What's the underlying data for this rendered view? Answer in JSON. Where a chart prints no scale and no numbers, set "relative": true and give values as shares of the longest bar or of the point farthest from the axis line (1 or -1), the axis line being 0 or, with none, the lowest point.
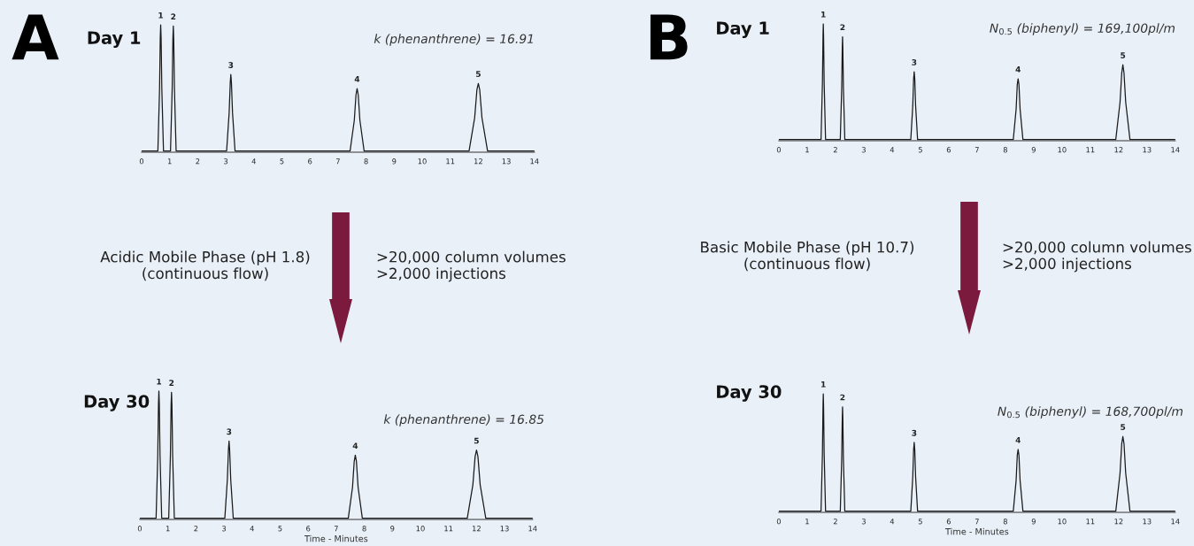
{
  "chart_data": [
    {
      "type": "line",
      "title": "Day 1",
      "relative": true,
      "xlim": [
        0,
        14
      ],
      "xticks": [
        0,
        1,
        2,
        3,
        4,
        5,
        6,
        7,
        8,
        9,
        10,
        11,
        12,
        13,
        14
      ],
      "series": [
        {
          "color": "#1a1a1a",
          "x": [
            0,
            0.58,
            0.64,
            0.665,
            0.68,
            0.695,
            0.72,
            0.78,
            1.03,
            1.09,
            1.115,
            1.13,
            1.145,
            1.17,
            1.23,
            3.03,
            3.12,
            3.16,
            3.18,
            3.2,
            3.24,
            3.33,
            7.43,
            7.58,
            7.64,
            7.68,
            7.72,
            7.78,
            7.93,
            11.67,
            11.87,
            11.95,
            12.0,
            12.05,
            12.13,
            12.33,
            14
          ],
          "values": [
            0.01,
            0.01,
            0.5,
            0.9,
            1.0,
            0.9,
            0.5,
            0.01,
            0.01,
            0.5,
            0.89,
            0.99,
            0.89,
            0.5,
            0.01,
            0.01,
            0.31,
            0.55,
            0.61,
            0.55,
            0.31,
            0.01,
            0.01,
            0.25,
            0.45,
            0.5,
            0.45,
            0.25,
            0.01,
            0.01,
            0.27,
            0.49,
            0.54,
            0.49,
            0.27,
            0.01,
            0.01
          ]
        }
      ],
      "annotations": [
        "A",
        "k (phenanthrene) = 16.91",
        {
          "text": "1",
          "x": 0.68,
          "y": 1.0
        },
        {
          "text": "2",
          "x": 1.13,
          "y": 0.99
        },
        {
          "text": "3",
          "x": 3.18,
          "y": 0.61
        },
        {
          "text": "4",
          "x": 7.68,
          "y": 0.5
        },
        {
          "text": "5",
          "x": 12.0,
          "y": 0.54
        }
      ]
    },
    {
      "type": "line",
      "title": "Day 30",
      "xlabel": "Time - Minutes",
      "relative": true,
      "xlim": [
        0,
        14
      ],
      "xticks": [
        0,
        1,
        2,
        3,
        4,
        5,
        6,
        7,
        8,
        9,
        10,
        11,
        12,
        13,
        14
      ],
      "series": [
        {
          "color": "#1a1a1a",
          "x": [
            0,
            0.58,
            0.64,
            0.665,
            0.68,
            0.695,
            0.72,
            0.78,
            1.03,
            1.09,
            1.115,
            1.13,
            1.145,
            1.17,
            1.23,
            3.03,
            3.12,
            3.16,
            3.18,
            3.2,
            3.24,
            3.33,
            7.43,
            7.58,
            7.64,
            7.68,
            7.72,
            7.78,
            7.93,
            11.67,
            11.87,
            11.95,
            12.0,
            12.05,
            12.13,
            12.33,
            14
          ],
          "values": [
            0.01,
            0.01,
            0.5,
            0.9,
            1.0,
            0.9,
            0.5,
            0.01,
            0.01,
            0.5,
            0.89,
            0.99,
            0.89,
            0.5,
            0.01,
            0.01,
            0.31,
            0.55,
            0.61,
            0.55,
            0.31,
            0.01,
            0.01,
            0.25,
            0.45,
            0.5,
            0.45,
            0.25,
            0.01,
            0.01,
            0.27,
            0.49,
            0.54,
            0.49,
            0.27,
            0.01,
            0.01
          ]
        }
      ],
      "annotations": [
        "Acidic Mobile Phase (pH 1.8)\n(continuous flow)",
        ">20,000 column volumes\n>2,000 injections",
        "k (phenanthrene) = 16.85",
        {
          "text": "1",
          "x": 0.68,
          "y": 1.0
        },
        {
          "text": "2",
          "x": 1.13,
          "y": 0.99
        },
        {
          "text": "3",
          "x": 3.18,
          "y": 0.61
        },
        {
          "text": "4",
          "x": 7.68,
          "y": 0.5
        },
        {
          "text": "5",
          "x": 12.0,
          "y": 0.54
        }
      ]
    },
    {
      "type": "line",
      "title": "Day 1",
      "relative": true,
      "xlim": [
        0,
        14
      ],
      "xticks": [
        0,
        1,
        2,
        3,
        4,
        5,
        6,
        7,
        8,
        9,
        10,
        11,
        12,
        13,
        14
      ],
      "series": [
        {
          "color": "#1a1a1a",
          "x": [
            0,
            1.49,
            1.54,
            1.56,
            1.57,
            1.58,
            1.6,
            1.65,
            2.17,
            2.22,
            2.24,
            2.25,
            2.26,
            2.28,
            2.33,
            4.66,
            4.73,
            4.76,
            4.78,
            4.8,
            4.83,
            4.9,
            8.28,
            8.38,
            8.42,
            8.45,
            8.48,
            8.52,
            8.62,
            11.9,
            12.05,
            12.11,
            12.15,
            12.19,
            12.25,
            12.4,
            14
          ],
          "values": [
            0.01,
            0.01,
            0.5,
            0.9,
            1.0,
            0.9,
            0.5,
            0.01,
            0.01,
            0.45,
            0.8,
            0.89,
            0.8,
            0.45,
            0.01,
            0.01,
            0.3,
            0.53,
            0.59,
            0.53,
            0.3,
            0.01,
            0.01,
            0.27,
            0.48,
            0.53,
            0.48,
            0.27,
            0.01,
            0.01,
            0.33,
            0.58,
            0.65,
            0.58,
            0.33,
            0.01,
            0.01
          ]
        }
      ],
      "annotations": [
        "B",
        "N$_{0.5}$ (biphenyl) = 169,100pl/m",
        {
          "text": "1",
          "x": 1.57,
          "y": 1.0
        },
        {
          "text": "2",
          "x": 2.25,
          "y": 0.89
        },
        {
          "text": "3",
          "x": 4.78,
          "y": 0.59
        },
        {
          "text": "4",
          "x": 8.45,
          "y": 0.53
        },
        {
          "text": "5",
          "x": 12.15,
          "y": 0.65
        }
      ]
    },
    {
      "type": "line",
      "title": "Day 30",
      "xlabel": "Time - Minutes",
      "relative": true,
      "xlim": [
        0,
        14
      ],
      "xticks": [
        0,
        1,
        2,
        3,
        4,
        5,
        6,
        7,
        8,
        9,
        10,
        11,
        12,
        13,
        14
      ],
      "series": [
        {
          "color": "#1a1a1a",
          "x": [
            0,
            1.49,
            1.54,
            1.56,
            1.57,
            1.58,
            1.6,
            1.65,
            2.17,
            2.22,
            2.24,
            2.25,
            2.26,
            2.28,
            2.33,
            4.66,
            4.73,
            4.76,
            4.78,
            4.8,
            4.83,
            4.9,
            8.28,
            8.38,
            8.42,
            8.45,
            8.48,
            8.52,
            8.62,
            11.9,
            12.05,
            12.11,
            12.15,
            12.19,
            12.25,
            12.4,
            14
          ],
          "values": [
            0.01,
            0.01,
            0.5,
            0.9,
            1.0,
            0.9,
            0.5,
            0.01,
            0.01,
            0.45,
            0.8,
            0.89,
            0.8,
            0.45,
            0.01,
            0.01,
            0.3,
            0.53,
            0.59,
            0.53,
            0.3,
            0.01,
            0.01,
            0.27,
            0.48,
            0.53,
            0.48,
            0.27,
            0.01,
            0.01,
            0.33,
            0.58,
            0.64,
            0.58,
            0.33,
            0.01,
            0.01
          ]
        }
      ],
      "annotations": [
        "Basic Mobile Phase (pH 10.7)\n(continuous flow)",
        ">20,000 column volumes\n>2,000 injections",
        "N$_{0.5}$ (biphenyl) = 168,700pl/m",
        {
          "text": "1",
          "x": 1.57,
          "y": 1.0
        },
        {
          "text": "2",
          "x": 2.25,
          "y": 0.89
        },
        {
          "text": "3",
          "x": 4.78,
          "y": 0.59
        },
        {
          "text": "4",
          "x": 8.45,
          "y": 0.53
        },
        {
          "text": "5",
          "x": 12.15,
          "y": 0.64
        }
      ]
    }
  ]
}
